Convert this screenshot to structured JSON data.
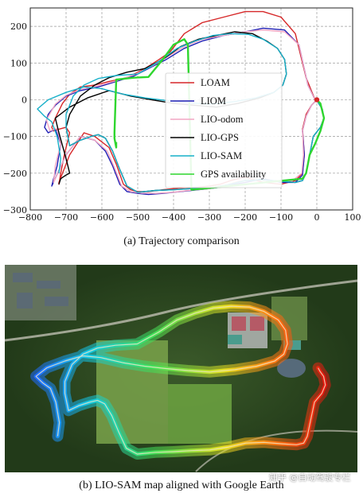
{
  "chart_data": {
    "type": "line",
    "title": "",
    "xlabel": "",
    "ylabel": "",
    "xlim": [
      -800,
      100
    ],
    "ylim": [
      -300,
      250
    ],
    "x_ticks": [
      -800,
      -700,
      -600,
      -500,
      -400,
      -300,
      -200,
      -100,
      0,
      100
    ],
    "y_ticks": [
      -300,
      -200,
      -100,
      0,
      100,
      200
    ],
    "x_tick_labels": [
      "−800",
      "−700",
      "−600",
      "−500",
      "−400",
      "−300",
      "−200",
      "−100",
      "0",
      "100"
    ],
    "y_tick_labels": [
      "−300",
      "−200",
      "−100",
      "0",
      "100",
      "200"
    ],
    "grid": true,
    "legend_position": "center",
    "series": [
      {
        "name": "LOAM",
        "color": "#d62728",
        "x": [
          -5,
          -30,
          -60,
          -100,
          -150,
          -200,
          -260,
          -320,
          -370,
          -410,
          -440,
          -480,
          -530,
          -580,
          -620,
          -660,
          -690,
          -710,
          -730,
          -740,
          -735,
          -720,
          -700,
          -690,
          -705,
          -715,
          -720,
          -720,
          -690,
          -650,
          -620,
          -580,
          -560,
          -540,
          -520,
          -500,
          -470,
          -430,
          -380,
          -330,
          -300,
          -270,
          -240,
          -200,
          -150,
          -100,
          -60,
          -40,
          -35,
          -40,
          -30,
          -15,
          0
        ],
        "y": [
          0,
          60,
          180,
          225,
          240,
          240,
          225,
          210,
          180,
          130,
          110,
          85,
          60,
          50,
          40,
          35,
          15,
          -10,
          -50,
          -75,
          -85,
          -80,
          -75,
          -90,
          -150,
          -200,
          -230,
          -225,
          -150,
          -90,
          -100,
          -130,
          -175,
          -230,
          -245,
          -250,
          -250,
          -245,
          -240,
          -238,
          -235,
          -230,
          -220,
          -210,
          -225,
          -230,
          -220,
          -200,
          -150,
          -80,
          -40,
          -15,
          0
        ]
      },
      {
        "name": "LIOM",
        "color": "#1f1fb4",
        "x": [
          -5,
          -25,
          -50,
          -90,
          -150,
          -200,
          -260,
          -320,
          -370,
          -420,
          -460,
          -510,
          -560,
          -610,
          -660,
          -700,
          -730,
          -750,
          -760,
          -750,
          -730,
          -715,
          -725,
          -735,
          -740,
          -700,
          -660,
          -620,
          -590,
          -570,
          -550,
          -530,
          -500,
          -470,
          -430,
          -380,
          -330,
          -300,
          -270,
          -240,
          -200,
          -150,
          -100,
          -60,
          -40,
          -35,
          -40,
          -30,
          -15,
          0
        ],
        "y": [
          0,
          40,
          150,
          190,
          195,
          185,
          175,
          160,
          140,
          110,
          90,
          65,
          50,
          35,
          25,
          10,
          -15,
          -40,
          -75,
          -90,
          -80,
          -120,
          -180,
          -215,
          -235,
          -150,
          -100,
          -110,
          -140,
          -180,
          -230,
          -250,
          -255,
          -258,
          -255,
          -250,
          -245,
          -242,
          -238,
          -232,
          -225,
          -215,
          -225,
          -225,
          -205,
          -150,
          -85,
          -45,
          -15,
          0
        ]
      },
      {
        "name": "LIO-odom",
        "color": "#f2a6c4",
        "x": [
          -5,
          -25,
          -50,
          -90,
          -150,
          -200,
          -260,
          -320,
          -370,
          -420,
          -460,
          -510,
          -560,
          -610,
          -660,
          -700,
          -730,
          -755,
          -745,
          -725,
          -715,
          -730,
          -735,
          -700,
          -660,
          -620,
          -585,
          -565,
          -545,
          -520,
          -490,
          -450,
          -400,
          -350,
          -300,
          -260,
          -220,
          -170,
          -120,
          -70,
          -42,
          -37,
          -40,
          -30,
          -15,
          0
        ],
        "y": [
          0,
          40,
          150,
          185,
          190,
          185,
          175,
          165,
          145,
          115,
          92,
          68,
          52,
          38,
          28,
          12,
          -12,
          -55,
          -85,
          -78,
          -120,
          -180,
          -225,
          -150,
          -100,
          -110,
          -140,
          -185,
          -235,
          -250,
          -254,
          -255,
          -252,
          -246,
          -242,
          -235,
          -222,
          -218,
          -222,
          -222,
          -200,
          -150,
          -85,
          -45,
          -15,
          0
        ]
      },
      {
        "name": "LIO-GPS",
        "color": "#000000",
        "x": [
          0,
          5,
          15,
          20,
          10,
          -10,
          -20,
          -30,
          -40,
          -60,
          -100,
          -150,
          -200,
          -250,
          -300,
          -350,
          -400,
          -450,
          -500,
          -530,
          -550,
          -570,
          -590,
          -610,
          -630,
          -660,
          -690,
          -700,
          -690,
          -660,
          -620,
          -580,
          -530,
          -480,
          -430,
          -380,
          -330,
          -280,
          -230,
          -180,
          -140,
          -110,
          -90,
          -85,
          -95,
          -120,
          -160,
          -220,
          -280,
          -340,
          -400,
          -460,
          -520,
          -580,
          -640,
          -690,
          -730,
          -720,
          -700,
          -690,
          -700,
          -715,
          -720
        ],
        "y": [
          0,
          -10,
          -25,
          -50,
          -75,
          -100,
          -150,
          -200,
          -220,
          -225,
          -222,
          -218,
          -220,
          -232,
          -240,
          -242,
          -245,
          -247,
          -252,
          -235,
          -190,
          -140,
          -105,
          -95,
          -100,
          -110,
          -125,
          -75,
          -40,
          10,
          40,
          60,
          75,
          85,
          110,
          145,
          165,
          175,
          185,
          180,
          160,
          140,
          110,
          70,
          40,
          20,
          5,
          -10,
          -20,
          -15,
          -10,
          0,
          10,
          25,
          5,
          -20,
          -50,
          -90,
          -160,
          -200,
          -205,
          -215,
          -230
        ]
      },
      {
        "name": "LIO-SAM",
        "color": "#17b0c9",
        "x": [
          0,
          5,
          15,
          20,
          10,
          -10,
          -20,
          -30,
          -40,
          -60,
          -100,
          -150,
          -200,
          -250,
          -300,
          -350,
          -400,
          -450,
          -500,
          -530,
          -550,
          -570,
          -590,
          -610,
          -630,
          -660,
          -690,
          -700,
          -700,
          -680,
          -650,
          -610,
          -560,
          -500,
          -440,
          -390,
          -340,
          -290,
          -240,
          -190,
          -150,
          -110,
          -90,
          -85,
          -95,
          -120,
          -170,
          -230,
          -300,
          -360,
          -420,
          -480,
          -540,
          -600,
          -650,
          -700,
          -750,
          -780,
          -760,
          -740,
          -725,
          -715,
          -720
        ],
        "y": [
          0,
          -10,
          -25,
          -50,
          -75,
          -100,
          -150,
          -200,
          -220,
          -225,
          -222,
          -218,
          -220,
          -232,
          -240,
          -242,
          -245,
          -247,
          -252,
          -235,
          -190,
          -140,
          -105,
          -95,
          -100,
          -110,
          -125,
          -75,
          -40,
          10,
          40,
          58,
          66,
          70,
          105,
          140,
          160,
          175,
          180,
          178,
          165,
          140,
          110,
          70,
          40,
          20,
          5,
          -5,
          -12,
          -8,
          -2,
          5,
          15,
          30,
          35,
          20,
          0,
          -25,
          -45,
          -60,
          -100,
          -160,
          -200
        ]
      },
      {
        "name": "GPS availability",
        "color": "#2fd62f",
        "x": [
          0,
          10,
          20,
          10,
          -5,
          -20,
          -25,
          -30,
          -40,
          -350,
          -360,
          -370,
          -400,
          -430,
          -470,
          -510,
          -560,
          -565,
          -565,
          -560,
          -560
        ],
        "y": [
          0,
          -10,
          -50,
          -85,
          -120,
          -150,
          -175,
          -200,
          -215,
          -245,
          150,
          165,
          150,
          110,
          62,
          60,
          55,
          -90,
          -105,
          -130,
          -115
        ]
      }
    ],
    "special_markers": [
      {
        "label": "start",
        "x": 0,
        "y": 0,
        "color": "#d62728"
      }
    ]
  },
  "captions": {
    "a": "(a) Trajectory comparison",
    "b": "(b) LIO-SAM map aligned with Google Earth"
  },
  "watermark": "知乎 @自动驾驶专栏"
}
